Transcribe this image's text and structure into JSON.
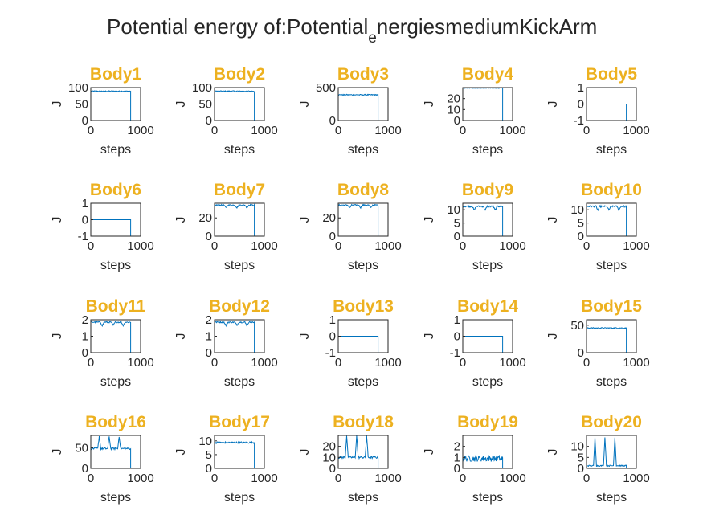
{
  "figure": {
    "title_main": "Potential energy of:Potential",
    "title_sub": "e",
    "title_rest": "nergiesmediumKickArm",
    "title_color": "#EDB120",
    "line_color": "#0072BD"
  },
  "chart_data": [
    {
      "type": "line",
      "title": "Body1",
      "xlabel": "steps",
      "ylabel": "J",
      "xlim": [
        0,
        1000
      ],
      "ylim": [
        0,
        100
      ],
      "yticks": [
        "0",
        "50",
        "100"
      ],
      "xticks": [
        "0",
        "1000"
      ],
      "shape": "flat",
      "level": 89,
      "noise": 1.5,
      "end_step": 800
    },
    {
      "type": "line",
      "title": "Body2",
      "xlabel": "steps",
      "ylabel": "J",
      "xlim": [
        0,
        1000
      ],
      "ylim": [
        0,
        100
      ],
      "yticks": [
        "0",
        "50",
        "100"
      ],
      "xticks": [
        "0",
        "1000"
      ],
      "shape": "flat",
      "level": 89,
      "noise": 1.5,
      "end_step": 800
    },
    {
      "type": "line",
      "title": "Body3",
      "xlabel": "steps",
      "ylabel": "J",
      "xlim": [
        0,
        1000
      ],
      "ylim": [
        0,
        500
      ],
      "yticks": [
        "0",
        "500"
      ],
      "xticks": [
        "0",
        "1000"
      ],
      "shape": "flat",
      "level": 390,
      "noise": 8,
      "end_step": 800
    },
    {
      "type": "line",
      "title": "Body4",
      "xlabel": "steps",
      "ylabel": "J",
      "xlim": [
        0,
        1000
      ],
      "ylim": [
        0,
        30
      ],
      "yticks": [
        "0",
        "10",
        "20"
      ],
      "xticks": [
        "0",
        "1000"
      ],
      "shape": "flat",
      "level": 29.5,
      "noise": 0.2,
      "end_step": 800
    },
    {
      "type": "line",
      "title": "Body5",
      "xlabel": "steps",
      "ylabel": "J",
      "xlim": [
        0,
        1000
      ],
      "ylim": [
        -1,
        1
      ],
      "yticks": [
        "-1",
        "0",
        "1"
      ],
      "xticks": [
        "0",
        "1000"
      ],
      "shape": "zero",
      "level": 0,
      "noise": 0,
      "end_step": 800
    },
    {
      "type": "line",
      "title": "Body6",
      "xlabel": "steps",
      "ylabel": "J",
      "xlim": [
        0,
        1000
      ],
      "ylim": [
        -1,
        1
      ],
      "yticks": [
        "-1",
        "0",
        "1"
      ],
      "xticks": [
        "0",
        "1000"
      ],
      "shape": "zero",
      "level": 0,
      "noise": 0,
      "end_step": 800
    },
    {
      "type": "line",
      "title": "Body7",
      "xlabel": "steps",
      "ylabel": "J",
      "xlim": [
        0,
        1000
      ],
      "ylim": [
        0,
        36
      ],
      "yticks": [
        "0",
        "20"
      ],
      "xticks": [
        "0",
        "1000"
      ],
      "shape": "dips",
      "level": 34,
      "noise": 0.6,
      "dip": 3,
      "end_step": 800
    },
    {
      "type": "line",
      "title": "Body8",
      "xlabel": "steps",
      "ylabel": "J",
      "xlim": [
        0,
        1000
      ],
      "ylim": [
        0,
        36
      ],
      "yticks": [
        "0",
        "20"
      ],
      "xticks": [
        "0",
        "1000"
      ],
      "shape": "dips",
      "level": 34,
      "noise": 0.6,
      "dip": 3,
      "end_step": 800
    },
    {
      "type": "line",
      "title": "Body9",
      "xlabel": "steps",
      "ylabel": "J",
      "xlim": [
        0,
        1000
      ],
      "ylim": [
        0,
        12.5
      ],
      "yticks": [
        "0",
        "5",
        "10"
      ],
      "xticks": [
        "0",
        "1000"
      ],
      "shape": "dips",
      "level": 11.3,
      "noise": 0.3,
      "dip": 1.5,
      "end_step": 800
    },
    {
      "type": "line",
      "title": "Body10",
      "xlabel": "steps",
      "ylabel": "J",
      "xlim": [
        0,
        1000
      ],
      "ylim": [
        0,
        12.5
      ],
      "yticks": [
        "0",
        "5",
        "10"
      ],
      "xticks": [
        "0",
        "1000"
      ],
      "shape": "dips",
      "level": 11.3,
      "noise": 0.3,
      "dip": 1.5,
      "end_step": 800
    },
    {
      "type": "line",
      "title": "Body11",
      "xlabel": "steps",
      "ylabel": "J",
      "xlim": [
        0,
        1000
      ],
      "ylim": [
        0,
        2
      ],
      "yticks": [
        "0",
        "1",
        "2"
      ],
      "xticks": [
        "0",
        "1000"
      ],
      "shape": "dips",
      "level": 1.85,
      "noise": 0.04,
      "dip": 0.2,
      "end_step": 800
    },
    {
      "type": "line",
      "title": "Body12",
      "xlabel": "steps",
      "ylabel": "J",
      "xlim": [
        0,
        1000
      ],
      "ylim": [
        0,
        2
      ],
      "yticks": [
        "0",
        "1",
        "2"
      ],
      "xticks": [
        "0",
        "1000"
      ],
      "shape": "dips",
      "level": 1.85,
      "noise": 0.04,
      "dip": 0.2,
      "end_step": 800
    },
    {
      "type": "line",
      "title": "Body13",
      "xlabel": "steps",
      "ylabel": "J",
      "xlim": [
        0,
        1000
      ],
      "ylim": [
        -1,
        1
      ],
      "yticks": [
        "-1",
        "0",
        "1"
      ],
      "xticks": [
        "0",
        "1000"
      ],
      "shape": "zero",
      "level": 0,
      "noise": 0,
      "end_step": 800
    },
    {
      "type": "line",
      "title": "Body14",
      "xlabel": "steps",
      "ylabel": "J",
      "xlim": [
        0,
        1000
      ],
      "ylim": [
        -1,
        1
      ],
      "yticks": [
        "-1",
        "0",
        "1"
      ],
      "xticks": [
        "0",
        "1000"
      ],
      "shape": "zero",
      "level": 0,
      "noise": 0,
      "end_step": 800
    },
    {
      "type": "line",
      "title": "Body15",
      "xlabel": "steps",
      "ylabel": "J",
      "xlim": [
        0,
        1000
      ],
      "ylim": [
        0,
        60
      ],
      "yticks": [
        "0",
        "50"
      ],
      "xticks": [
        "0",
        "1000"
      ],
      "shape": "flat",
      "level": 45,
      "noise": 0.8,
      "end_step": 800
    },
    {
      "type": "line",
      "title": "Body16",
      "xlabel": "steps",
      "ylabel": "J",
      "xlim": [
        0,
        1000
      ],
      "ylim": [
        0,
        80
      ],
      "yticks": [
        "0",
        "50"
      ],
      "xticks": [
        "0",
        "1000"
      ],
      "shape": "peaks",
      "level": 48,
      "noise": 2.5,
      "peak": 78,
      "end_step": 800
    },
    {
      "type": "line",
      "title": "Body17",
      "xlabel": "steps",
      "ylabel": "J",
      "xlim": [
        0,
        1000
      ],
      "ylim": [
        0,
        12
      ],
      "yticks": [
        "0",
        "5",
        "10"
      ],
      "xticks": [
        "0",
        "1000"
      ],
      "shape": "flat",
      "level": 9.4,
      "noise": 0.3,
      "end_step": 800
    },
    {
      "type": "line",
      "title": "Body18",
      "xlabel": "steps",
      "ylabel": "J",
      "xlim": [
        0,
        1000
      ],
      "ylim": [
        0,
        30
      ],
      "yticks": [
        "0",
        "10",
        "20"
      ],
      "xticks": [
        "0",
        "1000"
      ],
      "shape": "peaks",
      "level": 10,
      "noise": 1,
      "peak": 30,
      "end_step": 800
    },
    {
      "type": "line",
      "title": "Body19",
      "xlabel": "steps",
      "ylabel": "J",
      "xlim": [
        0,
        1000
      ],
      "ylim": [
        0,
        3
      ],
      "yticks": [
        "0",
        "1",
        "2"
      ],
      "xticks": [
        "0",
        "1000"
      ],
      "shape": "noisy",
      "level": 0.9,
      "noise": 0.2,
      "end_step": 800
    },
    {
      "type": "line",
      "title": "Body20",
      "xlabel": "steps",
      "ylabel": "J",
      "xlim": [
        0,
        1000
      ],
      "ylim": [
        0,
        15
      ],
      "yticks": [
        "0",
        "5",
        "10"
      ],
      "xticks": [
        "0",
        "1000"
      ],
      "shape": "peaks",
      "level": 1.2,
      "noise": 0.25,
      "peak": 14,
      "end_step": 800
    }
  ]
}
